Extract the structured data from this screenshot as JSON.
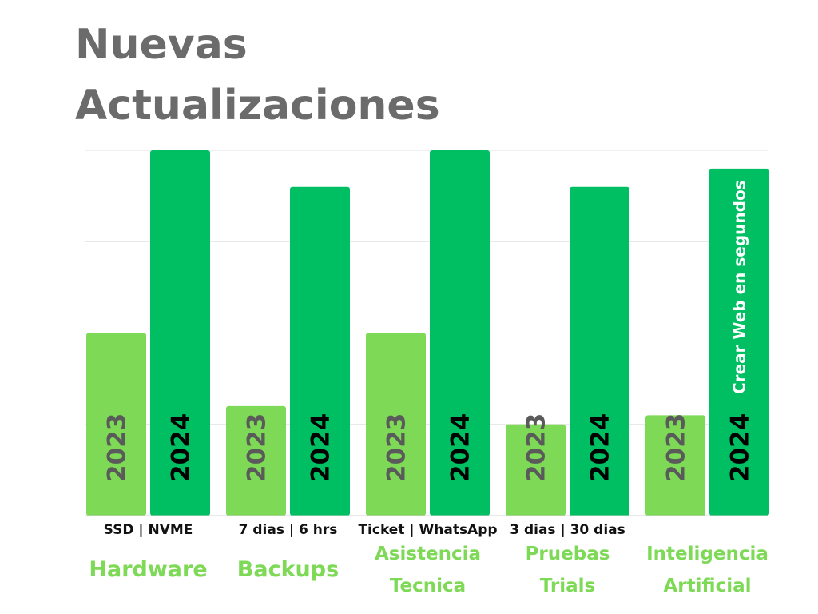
{
  "title_line1": "Nuevas",
  "title_line2": "Actualizaciones",
  "colors": {
    "bar_2023": "#7ed957",
    "bar_2024": "#00bf63",
    "text_2023": "#5a5a5a",
    "text_2024": "#000000",
    "category": "#7ed957",
    "title": "#6b6b6b",
    "grid": "#e0e0e0"
  },
  "chart_data": {
    "type": "bar",
    "title": "Nuevas Actualizaciones",
    "grid": true,
    "ylim": [
      0,
      4
    ],
    "categories": [
      {
        "lines": [
          "Hardware"
        ],
        "sublabel": "SSD | NVME"
      },
      {
        "lines": [
          "Backups"
        ],
        "sublabel": "7 dias | 6 hrs"
      },
      {
        "lines": [
          "Asistencia",
          "Tecnica"
        ],
        "sublabel": "Ticket | WhatsApp"
      },
      {
        "lines": [
          "Pruebas",
          "Trials"
        ],
        "sublabel": "3 dias | 30 dias"
      },
      {
        "lines": [
          "Inteligencia",
          "Artificial"
        ],
        "sublabel": ""
      }
    ],
    "series": [
      {
        "name": "2023",
        "values": [
          2.0,
          1.2,
          2.0,
          1.0,
          1.1
        ]
      },
      {
        "name": "2024",
        "values": [
          4.0,
          3.6,
          4.0,
          3.6,
          3.8
        ]
      }
    ],
    "annotations": [
      {
        "category_index": 4,
        "series": "2024",
        "text": "Crear Web en segundos"
      }
    ]
  }
}
